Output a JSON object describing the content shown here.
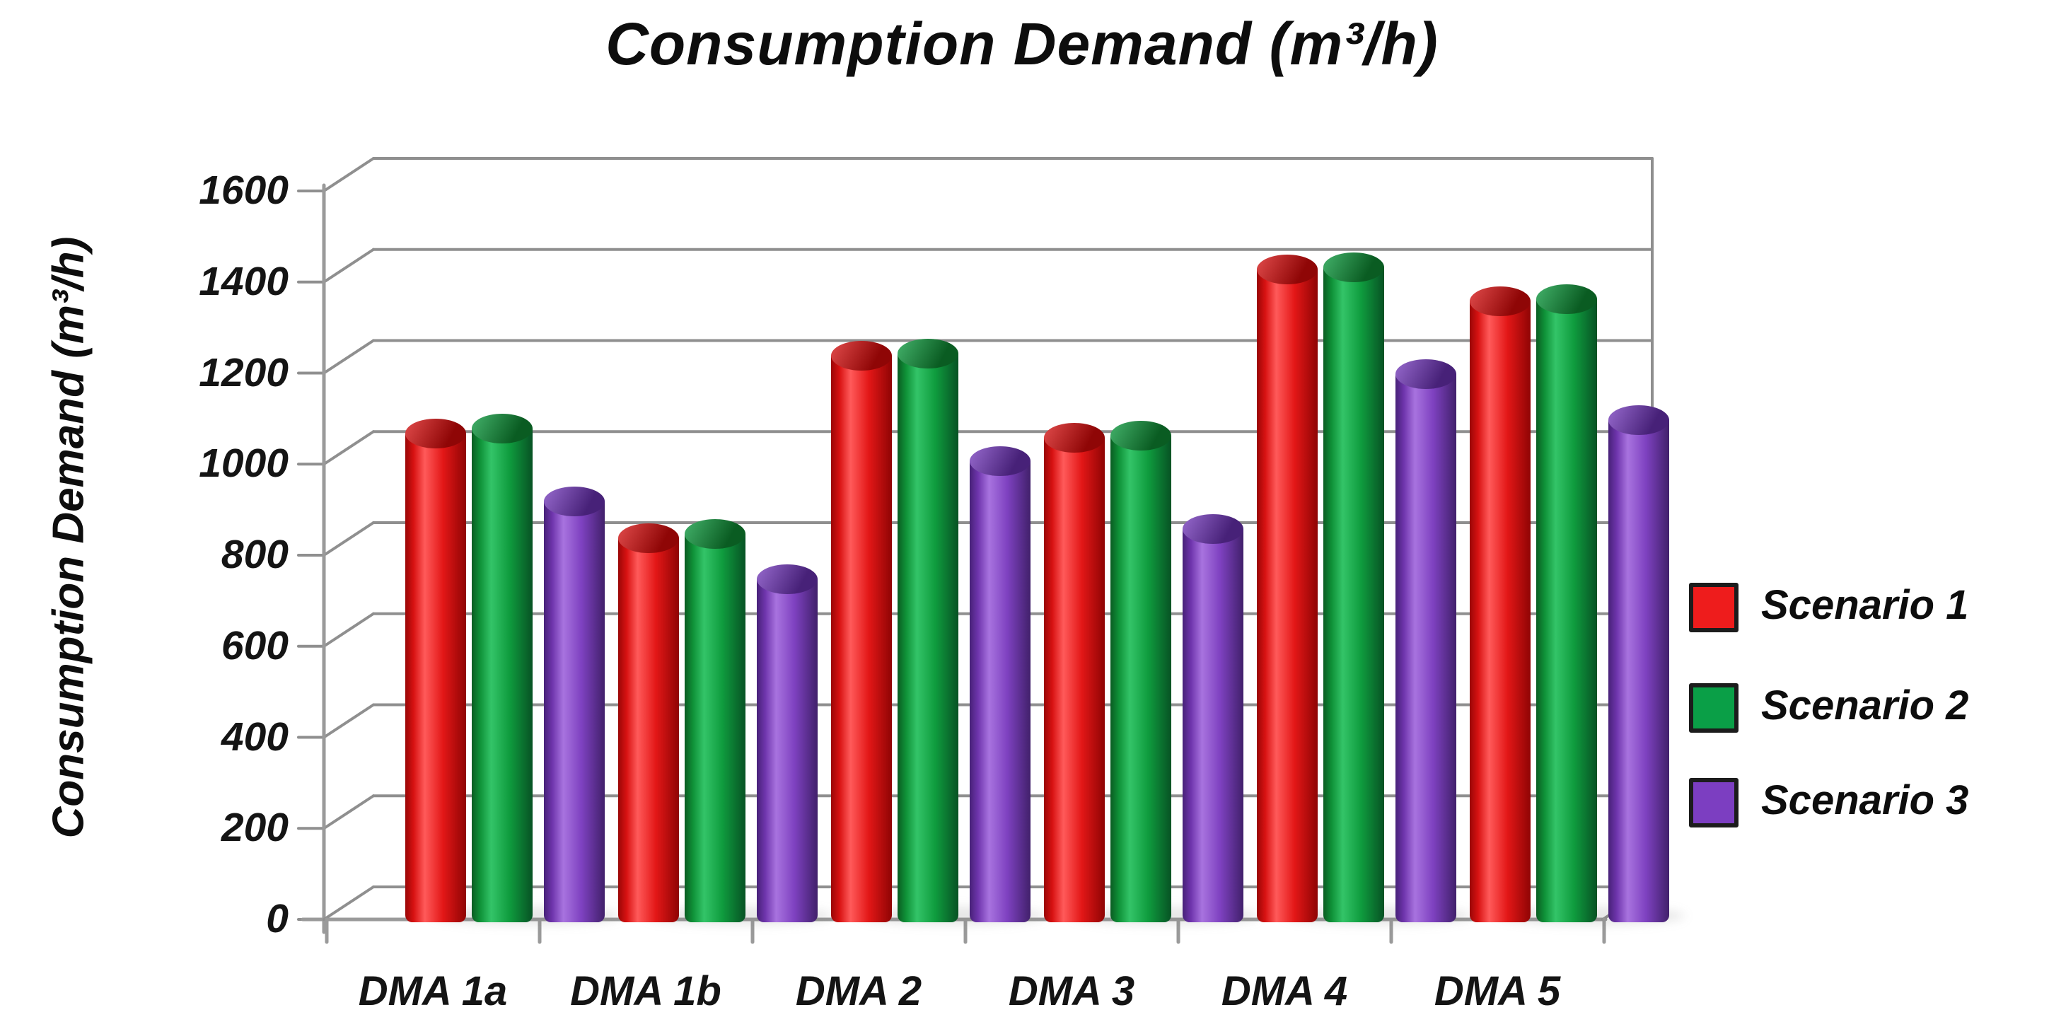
{
  "title": "Consumption Demand (m³/h)",
  "y_axis": {
    "label": "Consumption Demand (m³/h)",
    "tick_values": [
      0,
      200,
      400,
      600,
      800,
      1000,
      1200,
      1400,
      1600
    ]
  },
  "x_axis": {
    "categories": [
      "DMA 1a",
      "DMA 1b",
      "DMA 2",
      "DMA 3",
      "DMA 4",
      "DMA 5"
    ]
  },
  "colors": {
    "grid": "#8f8f8f",
    "axis": "#9a9a9a",
    "text": "#111111",
    "scenario1": "#ee1c1c",
    "scenario2": "#0a9f47",
    "scenario3": "#7c3ec1"
  },
  "chart_data": {
    "type": "bar",
    "style": "3d-cylinder",
    "title": "Consumption Demand (m³/h)",
    "xlabel": "",
    "ylabel": "Consumption Demand (m³/h)",
    "ylim": [
      0,
      1600
    ],
    "ytick_step": 200,
    "grid": true,
    "legend_position": "right",
    "categories": [
      "DMA 1a",
      "DMA 1b",
      "DMA 2",
      "DMA 3",
      "DMA 4",
      "DMA 5"
    ],
    "series": [
      {
        "name": "Scenario 1",
        "color": "#ee1c1c",
        "gradient": [
          "#9a0606",
          "#d81212",
          "#ff5a5a",
          "#e31717",
          "#8f0404"
        ],
        "cap": [
          "#d44040",
          "#8f0606"
        ],
        "values": [
          1100,
          870,
          1270,
          1090,
          1460,
          1390
        ]
      },
      {
        "name": "Scenario 2",
        "color": "#0a9f47",
        "gradient": [
          "#0a5c22",
          "#0f9238",
          "#33c468",
          "#0f9c3e",
          "#075224"
        ],
        "cap": [
          "#3aa45f",
          "#0a5c22"
        ],
        "values": [
          1110,
          880,
          1275,
          1095,
          1465,
          1395
        ]
      },
      {
        "name": "Scenario 3",
        "color": "#7c3ec1",
        "gradient": [
          "#472178",
          "#6f35ad",
          "#a873df",
          "#7e41c0",
          "#41206b"
        ],
        "cap": [
          "#8a5ec0",
          "#472178"
        ],
        "values": [
          950,
          780,
          1040,
          890,
          1230,
          1130
        ]
      }
    ]
  }
}
